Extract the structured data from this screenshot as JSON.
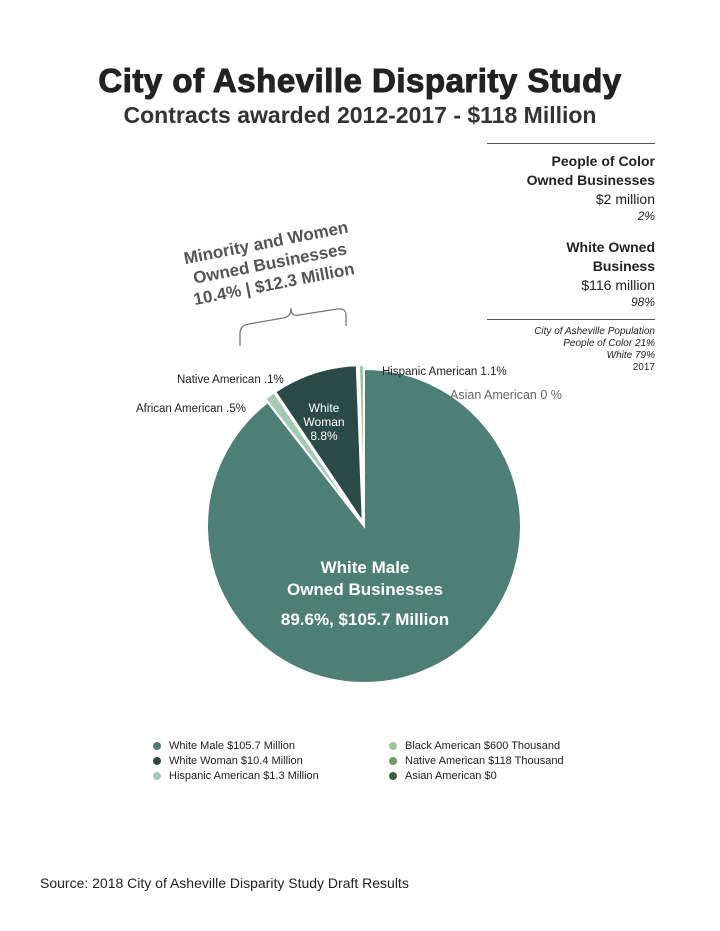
{
  "title": "City of Asheville Disparity Study",
  "subtitle": "Contracts awarded 2012-2017 - $118 Million",
  "sidebar": {
    "poc_heading_1": "People of Color",
    "poc_heading_2": "Owned Businesses",
    "poc_value": "$2 million",
    "poc_pct": "2%",
    "white_heading_1": "White Owned",
    "white_heading_2": "Business",
    "white_value": "$116 million",
    "white_pct": "98%",
    "pop_line1": "City of Asheville Population",
    "pop_line2": "People of Color 21%",
    "pop_line3": "White 79%",
    "pop_line4": "2017"
  },
  "callout": {
    "line1": "Minority and Women",
    "line2": "Owned Businesses",
    "line3": "10.4% | $12.3 Million"
  },
  "colors": {
    "white_male": "#4e7f74",
    "white_woman": "#2b4a46",
    "hispanic": "#a3c8b4",
    "black": "#9fc39a",
    "native": "#6e9a66",
    "asian": "#3f5f48"
  },
  "chart_data": {
    "type": "pie",
    "slices": [
      {
        "name": "White Male",
        "value": 105.7,
        "percent": 89.6,
        "color": "#4e7f74",
        "label_line1": "White Male",
        "label_line2": "Owned Businesses",
        "label_line3": "89.6%, $105.7 Million"
      },
      {
        "name": "Hispanic American",
        "value": 1.3,
        "percent": 1.1,
        "color": "#a3c8b4",
        "label": "Hispanic American 1.1%"
      },
      {
        "name": "White Woman",
        "value": 10.4,
        "percent": 8.8,
        "color": "#2b4a46",
        "label_line1": "White",
        "label_line2": "Woman",
        "label_line3": "8.8%"
      },
      {
        "name": "Native American",
        "value": 0.118,
        "percent": 0.1,
        "color": "#6e9a66",
        "label": "Native American .1%"
      },
      {
        "name": "African American",
        "value": 0.6,
        "percent": 0.5,
        "color": "#9fc39a",
        "label": "African American .5%"
      },
      {
        "name": "Asian American",
        "value": 0,
        "percent": 0,
        "color": "#3f5f48",
        "label": "Asian American 0 %"
      }
    ],
    "legend": [
      {
        "text": "White Male $105.7 Million",
        "color": "#4e7f74"
      },
      {
        "text": "Black American $600 Thousand",
        "color": "#9fc39a"
      },
      {
        "text": "White Woman $10.4 Million",
        "color": "#2b4a46"
      },
      {
        "text": "Native American $118 Thousand",
        "color": "#6e9a66"
      },
      {
        "text": "Hispanic American $1.3 Million",
        "color": "#a3c8b4"
      },
      {
        "text": "Asian American $0",
        "color": "#3f5f48"
      }
    ]
  },
  "source": "Source: 2018 City of Asheville Disparity Study Draft Results"
}
